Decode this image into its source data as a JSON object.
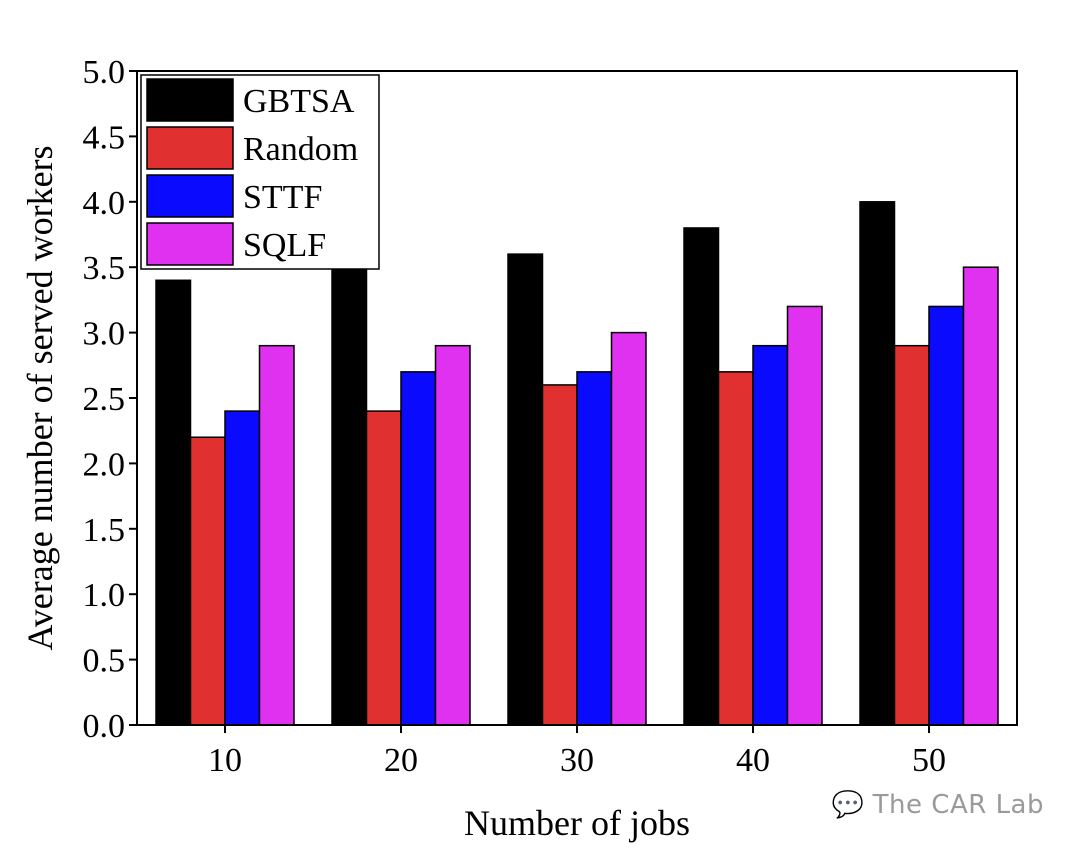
{
  "chart_data": {
    "type": "bar",
    "xlabel": "Number of jobs",
    "ylabel": "Average number of served workers",
    "categories": [
      "10",
      "20",
      "30",
      "40",
      "50"
    ],
    "ylim": [
      0,
      5.0
    ],
    "yticks": [
      "0.0",
      "0.5",
      "1.0",
      "1.5",
      "2.0",
      "2.5",
      "3.0",
      "3.5",
      "4.0",
      "4.5",
      "5.0"
    ],
    "series": [
      {
        "name": "GBTSA",
        "color": "#000000",
        "values": [
          3.4,
          3.6,
          3.6,
          3.8,
          4.0
        ]
      },
      {
        "name": "Random",
        "color": "#e03030",
        "values": [
          2.2,
          2.4,
          2.6,
          2.7,
          2.9
        ]
      },
      {
        "name": "STTF",
        "color": "#0a0aff",
        "values": [
          2.4,
          2.7,
          2.7,
          2.9,
          3.2
        ]
      },
      {
        "name": "SQLF",
        "color": "#e030f0",
        "values": [
          2.9,
          2.9,
          3.0,
          3.2,
          3.5
        ]
      }
    ],
    "grid": false,
    "legend_position": "top-left"
  },
  "watermark": {
    "text": "The CAR Lab",
    "icon": "wechat-icon"
  }
}
